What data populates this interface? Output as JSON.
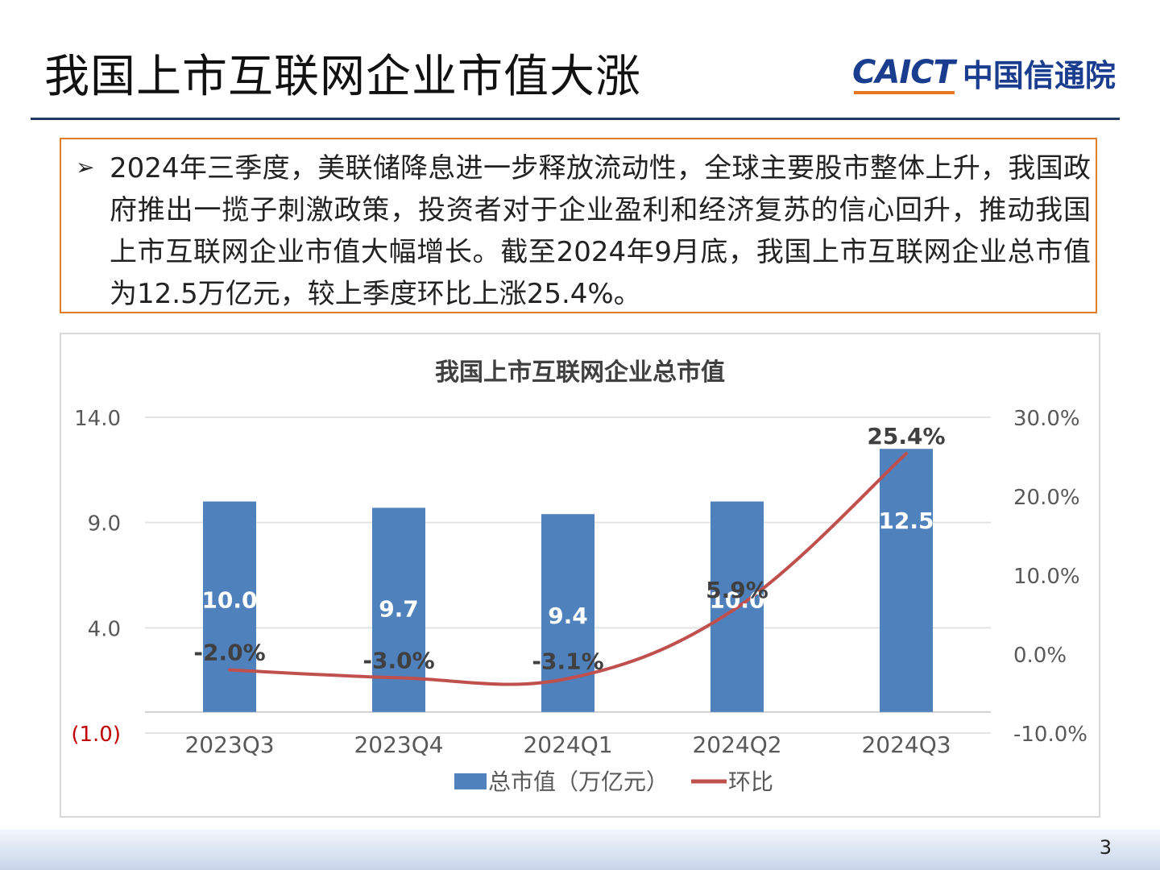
{
  "slide": {
    "title": "我国上市互联网企业市值大涨",
    "logo_en": "CAICT",
    "logo_cn": "中国信通院",
    "bullet_text": "2024年三季度，美联储降息进一步释放流动性，全球主要股市整体上升，我国政府推出一揽子刺激政策，投资者对于企业盈利和经济复苏的信心回升，推动我国上市互联网企业市值大幅增长。截至2024年9月底，我国上市互联网企业总市值为12.5万亿元，较上季度环比上涨25.4%。",
    "page_number": "3"
  },
  "chart_data": {
    "type": "bar",
    "title": "我国上市互联网企业总市值",
    "categories": [
      "2023Q3",
      "2023Q4",
      "2024Q1",
      "2024Q2",
      "2024Q3"
    ],
    "series": [
      {
        "name": "总市值（万亿元）",
        "type": "bar",
        "axis": "left",
        "values": [
          10.0,
          9.7,
          9.4,
          10.0,
          12.5
        ],
        "labels": [
          "10.0",
          "9.7",
          "9.4",
          "10.0",
          "12.5"
        ],
        "color": "#4f81bd"
      },
      {
        "name": "环比",
        "type": "line",
        "axis": "right",
        "values": [
          -2.0,
          -3.0,
          -3.1,
          5.9,
          25.4
        ],
        "labels": [
          "-2.0%",
          "-3.0%",
          "-3.1%",
          "5.9%",
          "25.4%"
        ],
        "color": "#c0504d"
      }
    ],
    "y_left": {
      "ylim": [
        -1.0,
        14.0
      ],
      "ticks": [
        14.0,
        9.0,
        4.0,
        -1.0
      ],
      "tick_labels": [
        "14.0",
        "9.0",
        "4.0",
        "(1.0)"
      ],
      "negative_color": "#c00000"
    },
    "y_right": {
      "ylim": [
        -10.0,
        30.0
      ],
      "ticks": [
        30.0,
        20.0,
        10.0,
        0.0,
        -10.0
      ],
      "tick_labels": [
        "30.0%",
        "20.0%",
        "10.0%",
        "0.0%",
        "-10.0%"
      ]
    },
    "grid": true,
    "legend_position": "bottom"
  }
}
